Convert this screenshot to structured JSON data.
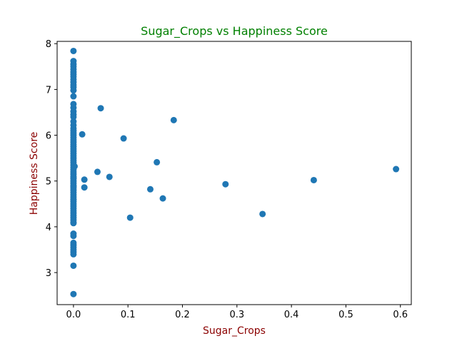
{
  "chart_data": {
    "type": "scatter",
    "title": "Sugar_Crops vs Happiness Score",
    "xlabel": "Sugar_Crops",
    "ylabel": "Happiness Score",
    "xlim": [
      -0.03,
      0.62
    ],
    "ylim": [
      2.3,
      8.05
    ],
    "xticks": [
      0.0,
      0.1,
      0.2,
      0.3,
      0.4,
      0.5,
      0.6
    ],
    "xtick_labels": [
      "0.0",
      "0.1",
      "0.2",
      "0.3",
      "0.4",
      "0.5",
      "0.6"
    ],
    "yticks": [
      3,
      4,
      5,
      6,
      7,
      8
    ],
    "ytick_labels": [
      "3",
      "4",
      "5",
      "6",
      "7",
      "8"
    ],
    "grid": false,
    "colors": {
      "marker": "#1f77b4",
      "title": "#008000",
      "axis_label": "#8b0000",
      "axes": "#000000"
    },
    "series": [
      {
        "x": [
          0.0,
          0.0,
          0.0,
          0.0,
          0.0,
          0.0,
          0.0,
          0.0,
          0.0,
          0.0,
          0.0,
          0.0,
          0.0,
          0.0,
          0.0,
          0.0,
          0.0,
          0.0,
          0.0,
          0.0,
          0.0,
          0.0,
          0.0,
          0.0,
          0.0,
          0.0,
          0.0,
          0.0,
          0.0,
          0.0,
          0.0,
          0.0,
          0.0,
          0.0,
          0.0,
          0.0,
          0.0,
          0.0,
          0.0,
          0.0,
          0.0,
          0.0,
          0.0,
          0.0,
          0.0,
          0.0,
          0.0,
          0.0,
          0.0,
          0.0,
          0.0,
          0.0,
          0.0,
          0.0,
          0.0,
          0.0,
          0.0,
          0.0,
          0.0,
          0.0,
          0.0,
          0.0,
          0.0,
          0.0,
          0.0,
          0.0,
          0.0,
          0.0,
          0.0,
          0.0,
          0.0,
          0.0,
          0.0,
          0.0,
          0.0,
          0.0,
          0.0,
          0.002,
          0.016,
          0.02,
          0.02,
          0.044,
          0.05,
          0.066,
          0.092,
          0.104,
          0.141,
          0.153,
          0.164,
          0.184,
          0.279,
          0.347,
          0.441,
          0.592
        ],
        "y": [
          7.84,
          7.62,
          7.55,
          7.5,
          7.44,
          7.38,
          7.33,
          7.28,
          7.22,
          7.16,
          7.1,
          7.05,
          6.98,
          6.85,
          6.68,
          6.6,
          6.52,
          6.45,
          6.4,
          6.3,
          6.22,
          6.15,
          6.1,
          6.05,
          6.0,
          5.95,
          5.9,
          5.85,
          5.8,
          5.75,
          5.7,
          5.65,
          5.6,
          5.55,
          5.5,
          5.45,
          5.4,
          5.35,
          5.3,
          5.25,
          5.2,
          5.15,
          5.1,
          5.05,
          5.0,
          4.95,
          4.9,
          4.85,
          4.8,
          4.75,
          4.7,
          4.65,
          4.6,
          4.55,
          4.5,
          4.45,
          4.4,
          4.35,
          4.3,
          4.25,
          4.2,
          4.15,
          4.1,
          4.08,
          3.85,
          3.8,
          3.65,
          3.6,
          3.55,
          3.5,
          3.45,
          3.4,
          3.15,
          2.53,
          4.6,
          5.07,
          4.88,
          5.32,
          6.02,
          5.03,
          4.86,
          5.2,
          6.59,
          5.09,
          5.93,
          4.2,
          4.82,
          5.41,
          4.62,
          6.33,
          4.93,
          4.28,
          5.02,
          5.26
        ]
      }
    ]
  }
}
